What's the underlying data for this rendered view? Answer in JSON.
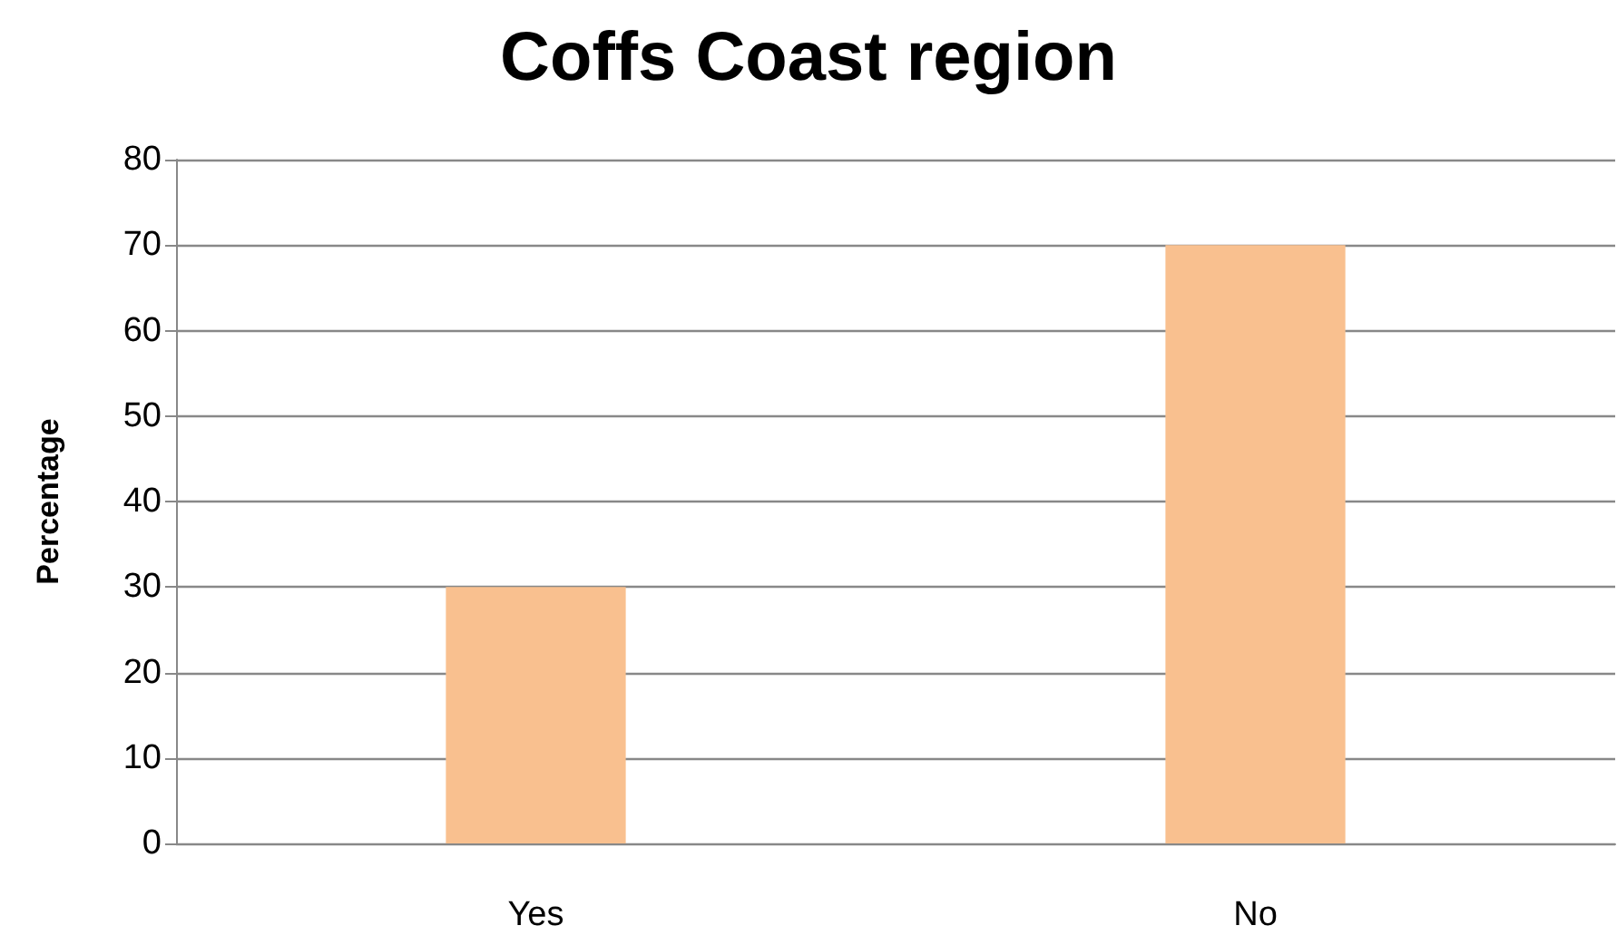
{
  "chart_data": {
    "type": "bar",
    "title": "Coffs Coast region",
    "ylabel": "Percentage",
    "categories": [
      "Yes",
      "No"
    ],
    "values": [
      30,
      70
    ],
    "color": "#f9c08f",
    "ylim": [
      0,
      80
    ],
    "yticks": [
      0,
      10,
      20,
      30,
      40,
      50,
      60,
      70,
      80
    ],
    "grid": "y"
  }
}
